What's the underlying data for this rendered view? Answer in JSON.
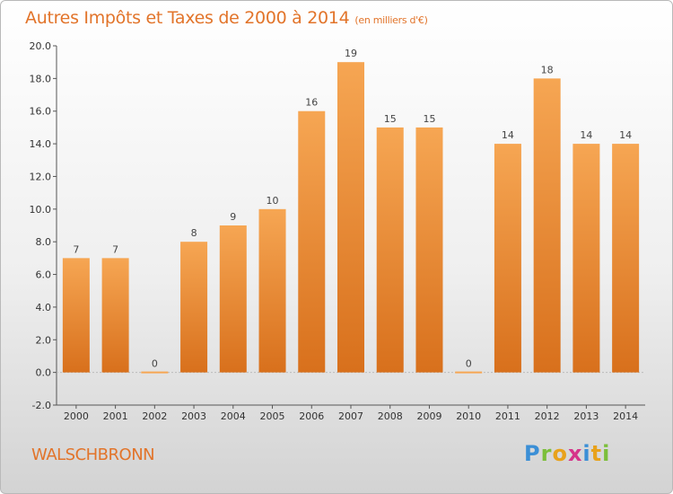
{
  "title": "Autres Impôts et Taxes de 2000 à 2014",
  "subtitle": "(en milliers d'€)",
  "commune": "WALSCHBRONN",
  "logo": {
    "letters": [
      "P",
      "r",
      "o",
      "x",
      "i",
      "t",
      "i"
    ],
    "colors": [
      "#3b8fd6",
      "#7cbf3a",
      "#e8a21b",
      "#d6338a",
      "#3b8fd6",
      "#e8a21b",
      "#7cbf3a"
    ]
  },
  "colors": {
    "bar_top": "#f6a653",
    "bar_bottom": "#d8701c",
    "accent": "#e2742a"
  },
  "chart_data": {
    "type": "bar",
    "title": "Autres Impôts et Taxes de 2000 à 2014",
    "subtitle": "(en milliers d'€)",
    "xlabel": "",
    "ylabel": "",
    "categories": [
      "2000",
      "2001",
      "2002",
      "2003",
      "2004",
      "2005",
      "2006",
      "2007",
      "2008",
      "2009",
      "2010",
      "2011",
      "2012",
      "2013",
      "2014"
    ],
    "values": [
      7,
      7,
      0,
      8,
      9,
      10,
      16,
      19,
      15,
      15,
      0,
      14,
      18,
      14,
      14
    ],
    "ylim": [
      -2,
      20
    ],
    "yticks": [
      -2,
      0,
      2,
      4,
      6,
      8,
      10,
      12,
      14,
      16,
      18,
      20
    ],
    "grid": false,
    "data_labels": true
  }
}
